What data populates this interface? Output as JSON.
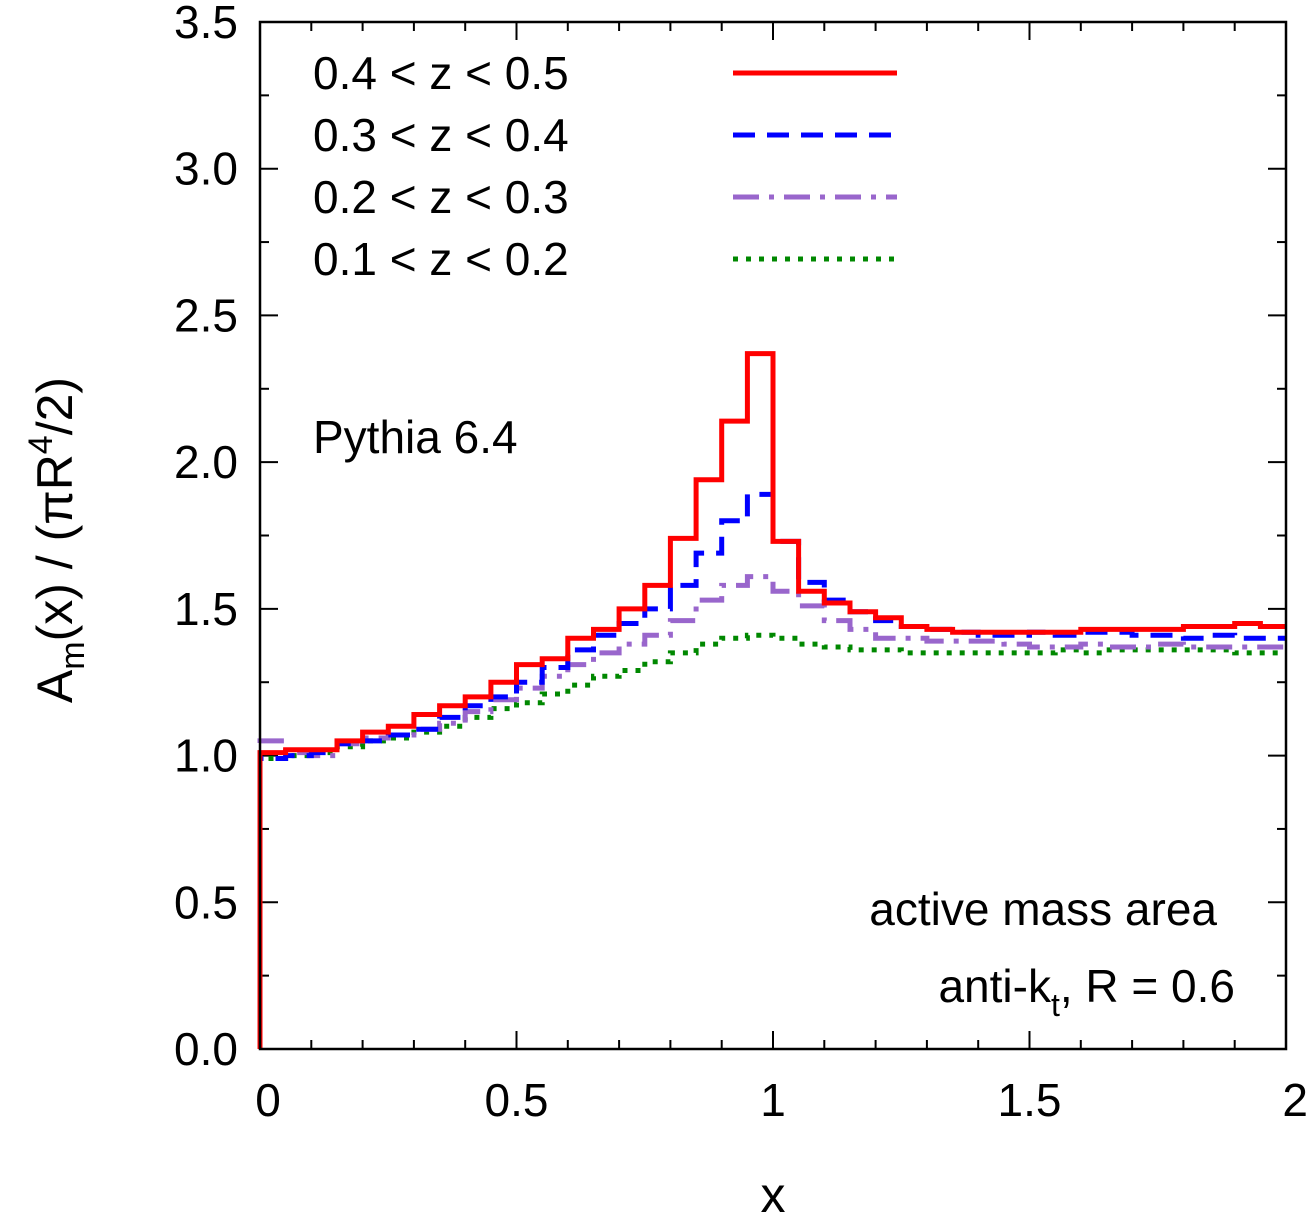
{
  "chart_data": {
    "type": "line",
    "title": "",
    "xlabel": "x",
    "ylabel": "A_m(x) / (πR^4/2)",
    "ylabel_parts": {
      "a": "A",
      "m": "m",
      "mid": "(x) / (πR",
      "four": "4",
      "end": "/2)"
    },
    "xlim": [
      0,
      2
    ],
    "ylim": [
      0,
      3.5
    ],
    "x_ticks": [
      0,
      0.5,
      1,
      1.5,
      2
    ],
    "x_tick_labels": [
      "0",
      "0.5",
      "1",
      "1.5",
      "2"
    ],
    "y_ticks": [
      0,
      0.5,
      1,
      1.5,
      2,
      2.5,
      3,
      3.5
    ],
    "y_tick_labels": [
      "0.0",
      "0.5",
      "1.0",
      "1.5",
      "2.0",
      "2.5",
      "3.0",
      "3.5"
    ],
    "legend_position": "top-left",
    "grid": false,
    "bin_width": 0.05,
    "bin_start": 0,
    "series": [
      {
        "name": "0.4 < z < 0.5",
        "color": "#ff0000",
        "dash": "solid",
        "values": [
          1.01,
          1.02,
          1.02,
          1.05,
          1.08,
          1.1,
          1.14,
          1.17,
          1.2,
          1.25,
          1.31,
          1.33,
          1.4,
          1.43,
          1.5,
          1.58,
          1.74,
          1.94,
          2.14,
          2.37,
          1.73,
          1.56,
          1.52,
          1.49,
          1.47,
          1.44,
          1.43,
          1.42,
          1.42,
          1.42,
          1.42,
          1.42,
          1.43,
          1.43,
          1.43,
          1.43,
          1.44,
          1.44,
          1.45,
          1.44
        ]
      },
      {
        "name": "0.3 < z < 0.4",
        "color": "#0000ff",
        "dash": "dashed",
        "values": [
          0.99,
          1.0,
          1.01,
          1.04,
          1.05,
          1.07,
          1.09,
          1.13,
          1.17,
          1.2,
          1.25,
          1.3,
          1.36,
          1.41,
          1.45,
          1.5,
          1.58,
          1.69,
          1.8,
          1.89,
          1.73,
          1.59,
          1.53,
          1.49,
          1.46,
          1.44,
          1.43,
          1.42,
          1.41,
          1.41,
          1.42,
          1.41,
          1.42,
          1.42,
          1.41,
          1.41,
          1.4,
          1.41,
          1.4,
          1.4
        ]
      },
      {
        "name": "0.2 < z < 0.3",
        "color": "#9966cc",
        "dash": "dashdot",
        "values": [
          1.05,
          1.01,
          1.0,
          1.04,
          1.06,
          1.07,
          1.09,
          1.11,
          1.15,
          1.19,
          1.23,
          1.27,
          1.31,
          1.35,
          1.38,
          1.41,
          1.46,
          1.53,
          1.58,
          1.61,
          1.56,
          1.51,
          1.46,
          1.43,
          1.4,
          1.4,
          1.39,
          1.39,
          1.39,
          1.38,
          1.37,
          1.37,
          1.38,
          1.37,
          1.37,
          1.38,
          1.37,
          1.37,
          1.37,
          1.37
        ]
      },
      {
        "name": "0.1 < z < 0.2",
        "color": "#008800",
        "dash": "dotted",
        "values": [
          0.99,
          1.0,
          1.01,
          1.03,
          1.05,
          1.06,
          1.08,
          1.1,
          1.13,
          1.16,
          1.18,
          1.21,
          1.24,
          1.27,
          1.29,
          1.32,
          1.35,
          1.38,
          1.4,
          1.41,
          1.4,
          1.38,
          1.37,
          1.36,
          1.36,
          1.35,
          1.35,
          1.35,
          1.35,
          1.35,
          1.35,
          1.36,
          1.35,
          1.36,
          1.36,
          1.36,
          1.36,
          1.36,
          1.35,
          1.35
        ]
      }
    ],
    "annotations": {
      "generator": "Pythia 6.4",
      "area_type": "active mass area",
      "algo_prefix": "anti-k",
      "algo_sub": "t",
      "algo_suffix": ", R = 0.6"
    }
  }
}
